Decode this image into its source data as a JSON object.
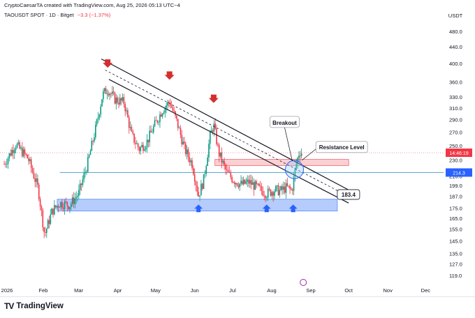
{
  "header": {
    "credit": "CryptoCaesarTA created with TradingView.com, Aug 25, 2026 05:13 UTC−4",
    "symbol_line": "TAOUSDT SPOT · 1D · Bitget",
    "change": "−3.3 (−1.37%)"
  },
  "colors": {
    "up": "#089981",
    "down": "#f23645",
    "support_zone": "#5b8ff9",
    "resistance_zone": "#f7b1b5",
    "arrow_up": "#2962ff",
    "arrow_down": "#d32f2f",
    "h_line": "#5aa0c7"
  },
  "chart_data": {
    "type": "candlestick",
    "y_scale": "log",
    "ylim": [
      113,
      520
    ],
    "yticks": [
      "480.0",
      "440.0",
      "400.0",
      "360.0",
      "330.0",
      "310.0",
      "290.0",
      "270.0",
      "250.0",
      "230.0",
      "210.0",
      "199.0",
      "187.0",
      "175.0",
      "165.0",
      "155.0",
      "145.0",
      "135.0",
      "127.0",
      "119.0"
    ],
    "ytick_values": [
      480,
      440,
      400,
      360,
      330,
      310,
      290,
      270,
      250,
      230,
      210,
      199,
      187,
      175,
      165,
      155,
      145,
      135,
      127,
      119
    ],
    "currency_label": "USDT",
    "x_labels": [
      "2026",
      "Feb",
      "Mar",
      "Apr",
      "May",
      "Jun",
      "Jul",
      "Aug",
      "Sep",
      "Oct",
      "Nov",
      "Dec"
    ],
    "price_path": [
      [
        "2026-01-01",
        225
      ],
      [
        "2026-01-10",
        252
      ],
      [
        "2026-01-20",
        232
      ],
      [
        "2026-01-28",
        195
      ],
      [
        "2026-02-02",
        150
      ],
      [
        "2026-02-08",
        172
      ],
      [
        "2026-02-14",
        180
      ],
      [
        "2026-02-22",
        178
      ],
      [
        "2026-03-01",
        190
      ],
      [
        "2026-03-08",
        225
      ],
      [
        "2026-03-15",
        280
      ],
      [
        "2026-03-20",
        335
      ],
      [
        "2026-03-24",
        345
      ],
      [
        "2026-03-30",
        325
      ],
      [
        "2026-04-06",
        320
      ],
      [
        "2026-04-12",
        265
      ],
      [
        "2026-04-18",
        245
      ],
      [
        "2026-04-24",
        255
      ],
      [
        "2026-04-30",
        280
      ],
      [
        "2026-05-06",
        305
      ],
      [
        "2026-05-12",
        322
      ],
      [
        "2026-05-18",
        285
      ],
      [
        "2026-05-24",
        245
      ],
      [
        "2026-05-30",
        225
      ],
      [
        "2026-06-04",
        188
      ],
      [
        "2026-06-08",
        205
      ],
      [
        "2026-06-13",
        262
      ],
      [
        "2026-06-16",
        282
      ],
      [
        "2026-06-20",
        240
      ],
      [
        "2026-06-26",
        215
      ],
      [
        "2026-07-02",
        205
      ],
      [
        "2026-07-08",
        200
      ],
      [
        "2026-07-14",
        203
      ],
      [
        "2026-07-22",
        195
      ],
      [
        "2026-07-28",
        190
      ],
      [
        "2026-08-03",
        194
      ],
      [
        "2026-08-08",
        193
      ],
      [
        "2026-08-13",
        197
      ],
      [
        "2026-08-17",
        193
      ],
      [
        "2026-08-20",
        222
      ],
      [
        "2026-08-23",
        242
      ],
      [
        "2026-08-25",
        240
      ]
    ],
    "price_tags": [
      {
        "value": "14:46:19",
        "price": 240,
        "color": "#f23645"
      },
      {
        "value": "214.3",
        "price": 214.3,
        "color": "#2962ff"
      }
    ],
    "annotations": {
      "breakout": "Breakout",
      "resistance": "Resistance Level",
      "support_value": "183.4"
    },
    "support_zone": [
      172,
      184
    ],
    "resistance_zone": [
      223,
      231
    ],
    "h_line_price": 214.3,
    "down_arrow_dates": [
      "2026-03-24",
      "2026-05-12",
      "2026-06-16"
    ],
    "up_arrow_dates": [
      "2026-06-04",
      "2026-07-28",
      "2026-08-18"
    ]
  },
  "footer": {
    "brand": "TradingView"
  }
}
